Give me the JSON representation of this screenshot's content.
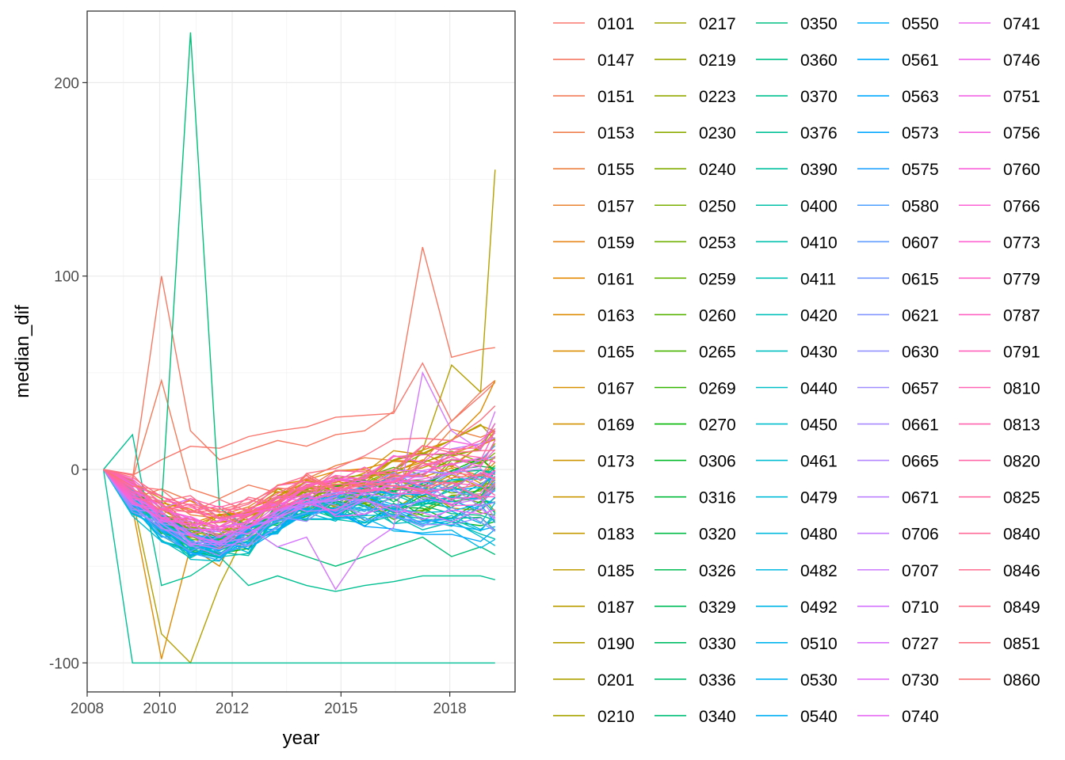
{
  "chart_data": {
    "type": "line",
    "xlabel": "year",
    "ylabel": "median_dif",
    "xlim": [
      2008,
      2019.8
    ],
    "ylim": [
      -115,
      237
    ],
    "x_ticks": [
      2008,
      2010,
      2012,
      2015,
      2018
    ],
    "x_tick_labels": [
      "2008",
      "2010",
      "2012",
      "2015",
      "2018"
    ],
    "y_ticks": [
      -100,
      0,
      100,
      200
    ],
    "y_tick_labels": [
      "-100",
      "0",
      "100",
      "200"
    ],
    "x": [
      2008.45,
      2009.25,
      2010.05,
      2010.85,
      2011.65,
      2012.45,
      2013.25,
      2014.05,
      2014.85,
      2015.65,
      2016.45,
      2017.25,
      2018.05,
      2018.85,
      2019.25
    ],
    "grid": true,
    "legend_position": "right",
    "legend_columns": 5,
    "series_names": [
      "0101",
      "0147",
      "0151",
      "0153",
      "0155",
      "0157",
      "0159",
      "0161",
      "0163",
      "0165",
      "0167",
      "0169",
      "0173",
      "0175",
      "0183",
      "0185",
      "0187",
      "0190",
      "0201",
      "0210",
      "0217",
      "0219",
      "0223",
      "0230",
      "0240",
      "0250",
      "0253",
      "0259",
      "0260",
      "0265",
      "0269",
      "0270",
      "0306",
      "0316",
      "0320",
      "0326",
      "0329",
      "0330",
      "0336",
      "0340",
      "0350",
      "0360",
      "0370",
      "0376",
      "0390",
      "0400",
      "0410",
      "0411",
      "0420",
      "0430",
      "0440",
      "0450",
      "0461",
      "0479",
      "0480",
      "0482",
      "0492",
      "0510",
      "0530",
      "0540",
      "0550",
      "0561",
      "0563",
      "0573",
      "0575",
      "0580",
      "0607",
      "0615",
      "0621",
      "0630",
      "0657",
      "0661",
      "0665",
      "0671",
      "0706",
      "0707",
      "0710",
      "0727",
      "0730",
      "0740",
      "0741",
      "0746",
      "0751",
      "0756",
      "0760",
      "0766",
      "0773",
      "0779",
      "0787",
      "0791",
      "0810",
      "0813",
      "0820",
      "0825",
      "0840",
      "0846",
      "0849",
      "0851",
      "0860"
    ]
  }
}
